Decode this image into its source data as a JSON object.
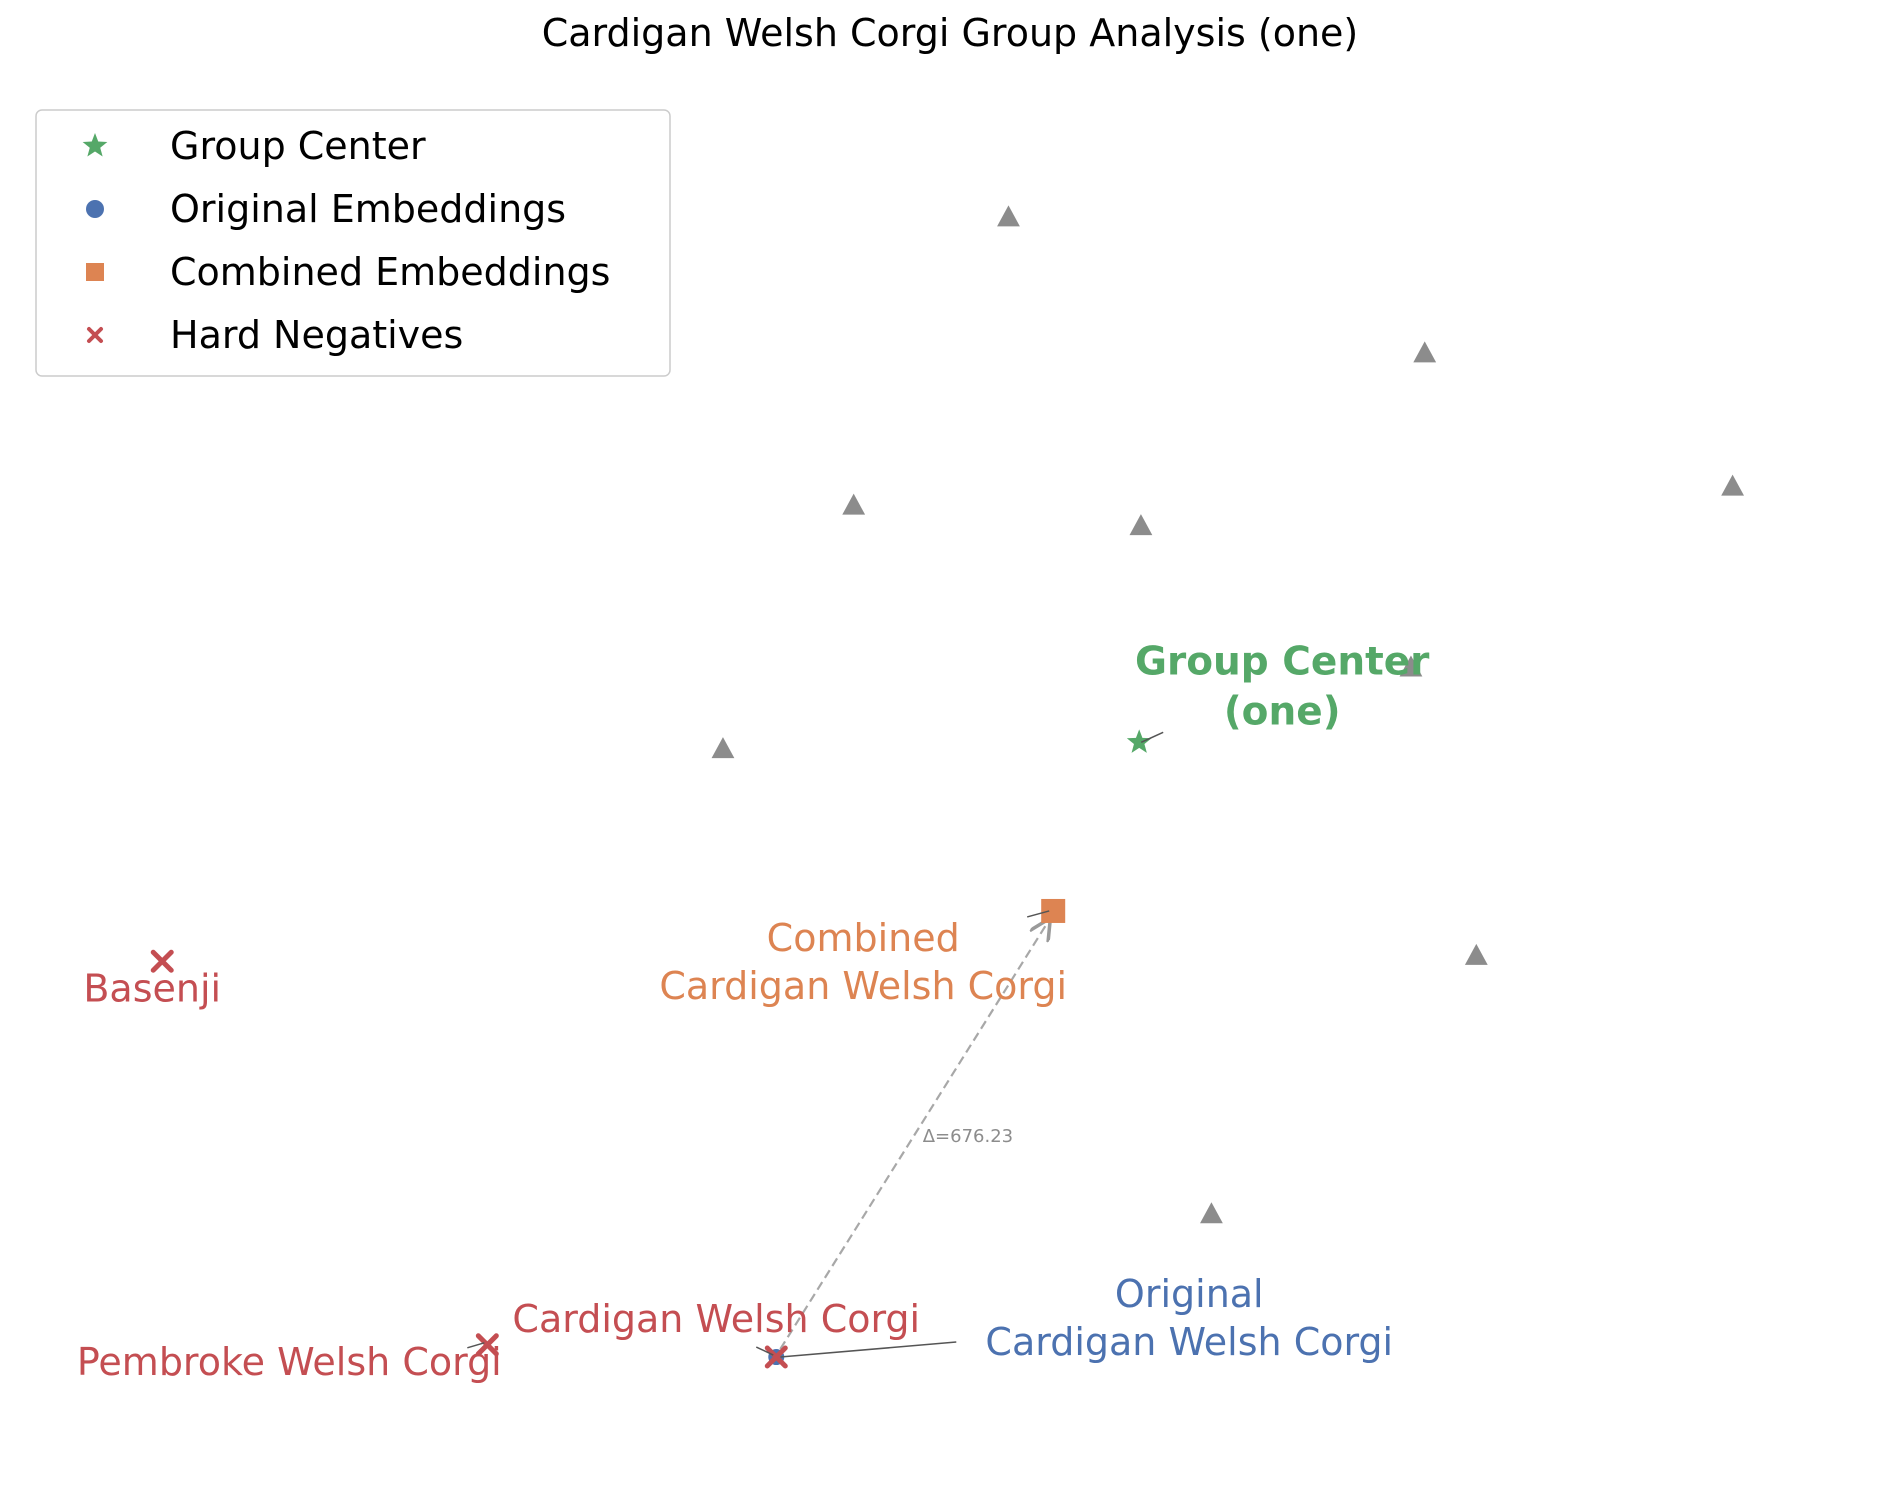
{
  "chart_data": {
    "type": "scatter",
    "title": "Cardigan Welsh Corgi Group Analysis (one)",
    "xlabel": "",
    "ylabel": "",
    "axes_visible": false,
    "grid": false,
    "legend_position": "top-left",
    "xlim": [
      0,
      100
    ],
    "ylim": [
      0,
      100
    ],
    "legend": [
      {
        "label": "Group Center",
        "marker": "star",
        "color": "#55a868"
      },
      {
        "label": "Original Embeddings",
        "marker": "circle",
        "color": "#4c72b0"
      },
      {
        "label": "Combined Embeddings",
        "marker": "square",
        "color": "#dd8452"
      },
      {
        "label": "Hard Negatives",
        "marker": "x",
        "color": "#c44e52"
      }
    ],
    "other_points": {
      "marker": "triangle",
      "color": "#8c8c8c",
      "points": [
        {
          "x": 53.4,
          "y": 89.9
        },
        {
          "x": 77.6,
          "y": 79.9
        },
        {
          "x": 95.5,
          "y": 70.1
        },
        {
          "x": 44.4,
          "y": 68.7
        },
        {
          "x": 61.1,
          "y": 67.2
        },
        {
          "x": 76.8,
          "y": 56.8
        },
        {
          "x": 36.8,
          "y": 50.8
        },
        {
          "x": 80.6,
          "y": 35.6
        },
        {
          "x": 65.2,
          "y": 16.6
        }
      ]
    },
    "group_center": {
      "x": 61.0,
      "y": 51.3,
      "label": "Group Center\n(one)",
      "color": "#55a868"
    },
    "original": {
      "x": 39.9,
      "y": 6.1,
      "label": "Original\nCardigan Welsh Corgi",
      "color": "#4c72b0"
    },
    "combined": {
      "x": 56.0,
      "y": 38.9,
      "label": "Combined\nCardigan Welsh Corgi",
      "color": "#dd8452"
    },
    "hard_negatives": [
      {
        "x": 39.9,
        "y": 6.1,
        "label": "Cardigan Welsh Corgi"
      },
      {
        "x": 23.1,
        "y": 7.0,
        "label": "Pembroke Welsh Corgi"
      },
      {
        "x": 4.2,
        "y": 35.2,
        "label": "Basenji"
      }
    ],
    "shift": {
      "from": "original",
      "to": "combined",
      "label": "Δ=676.23"
    }
  }
}
